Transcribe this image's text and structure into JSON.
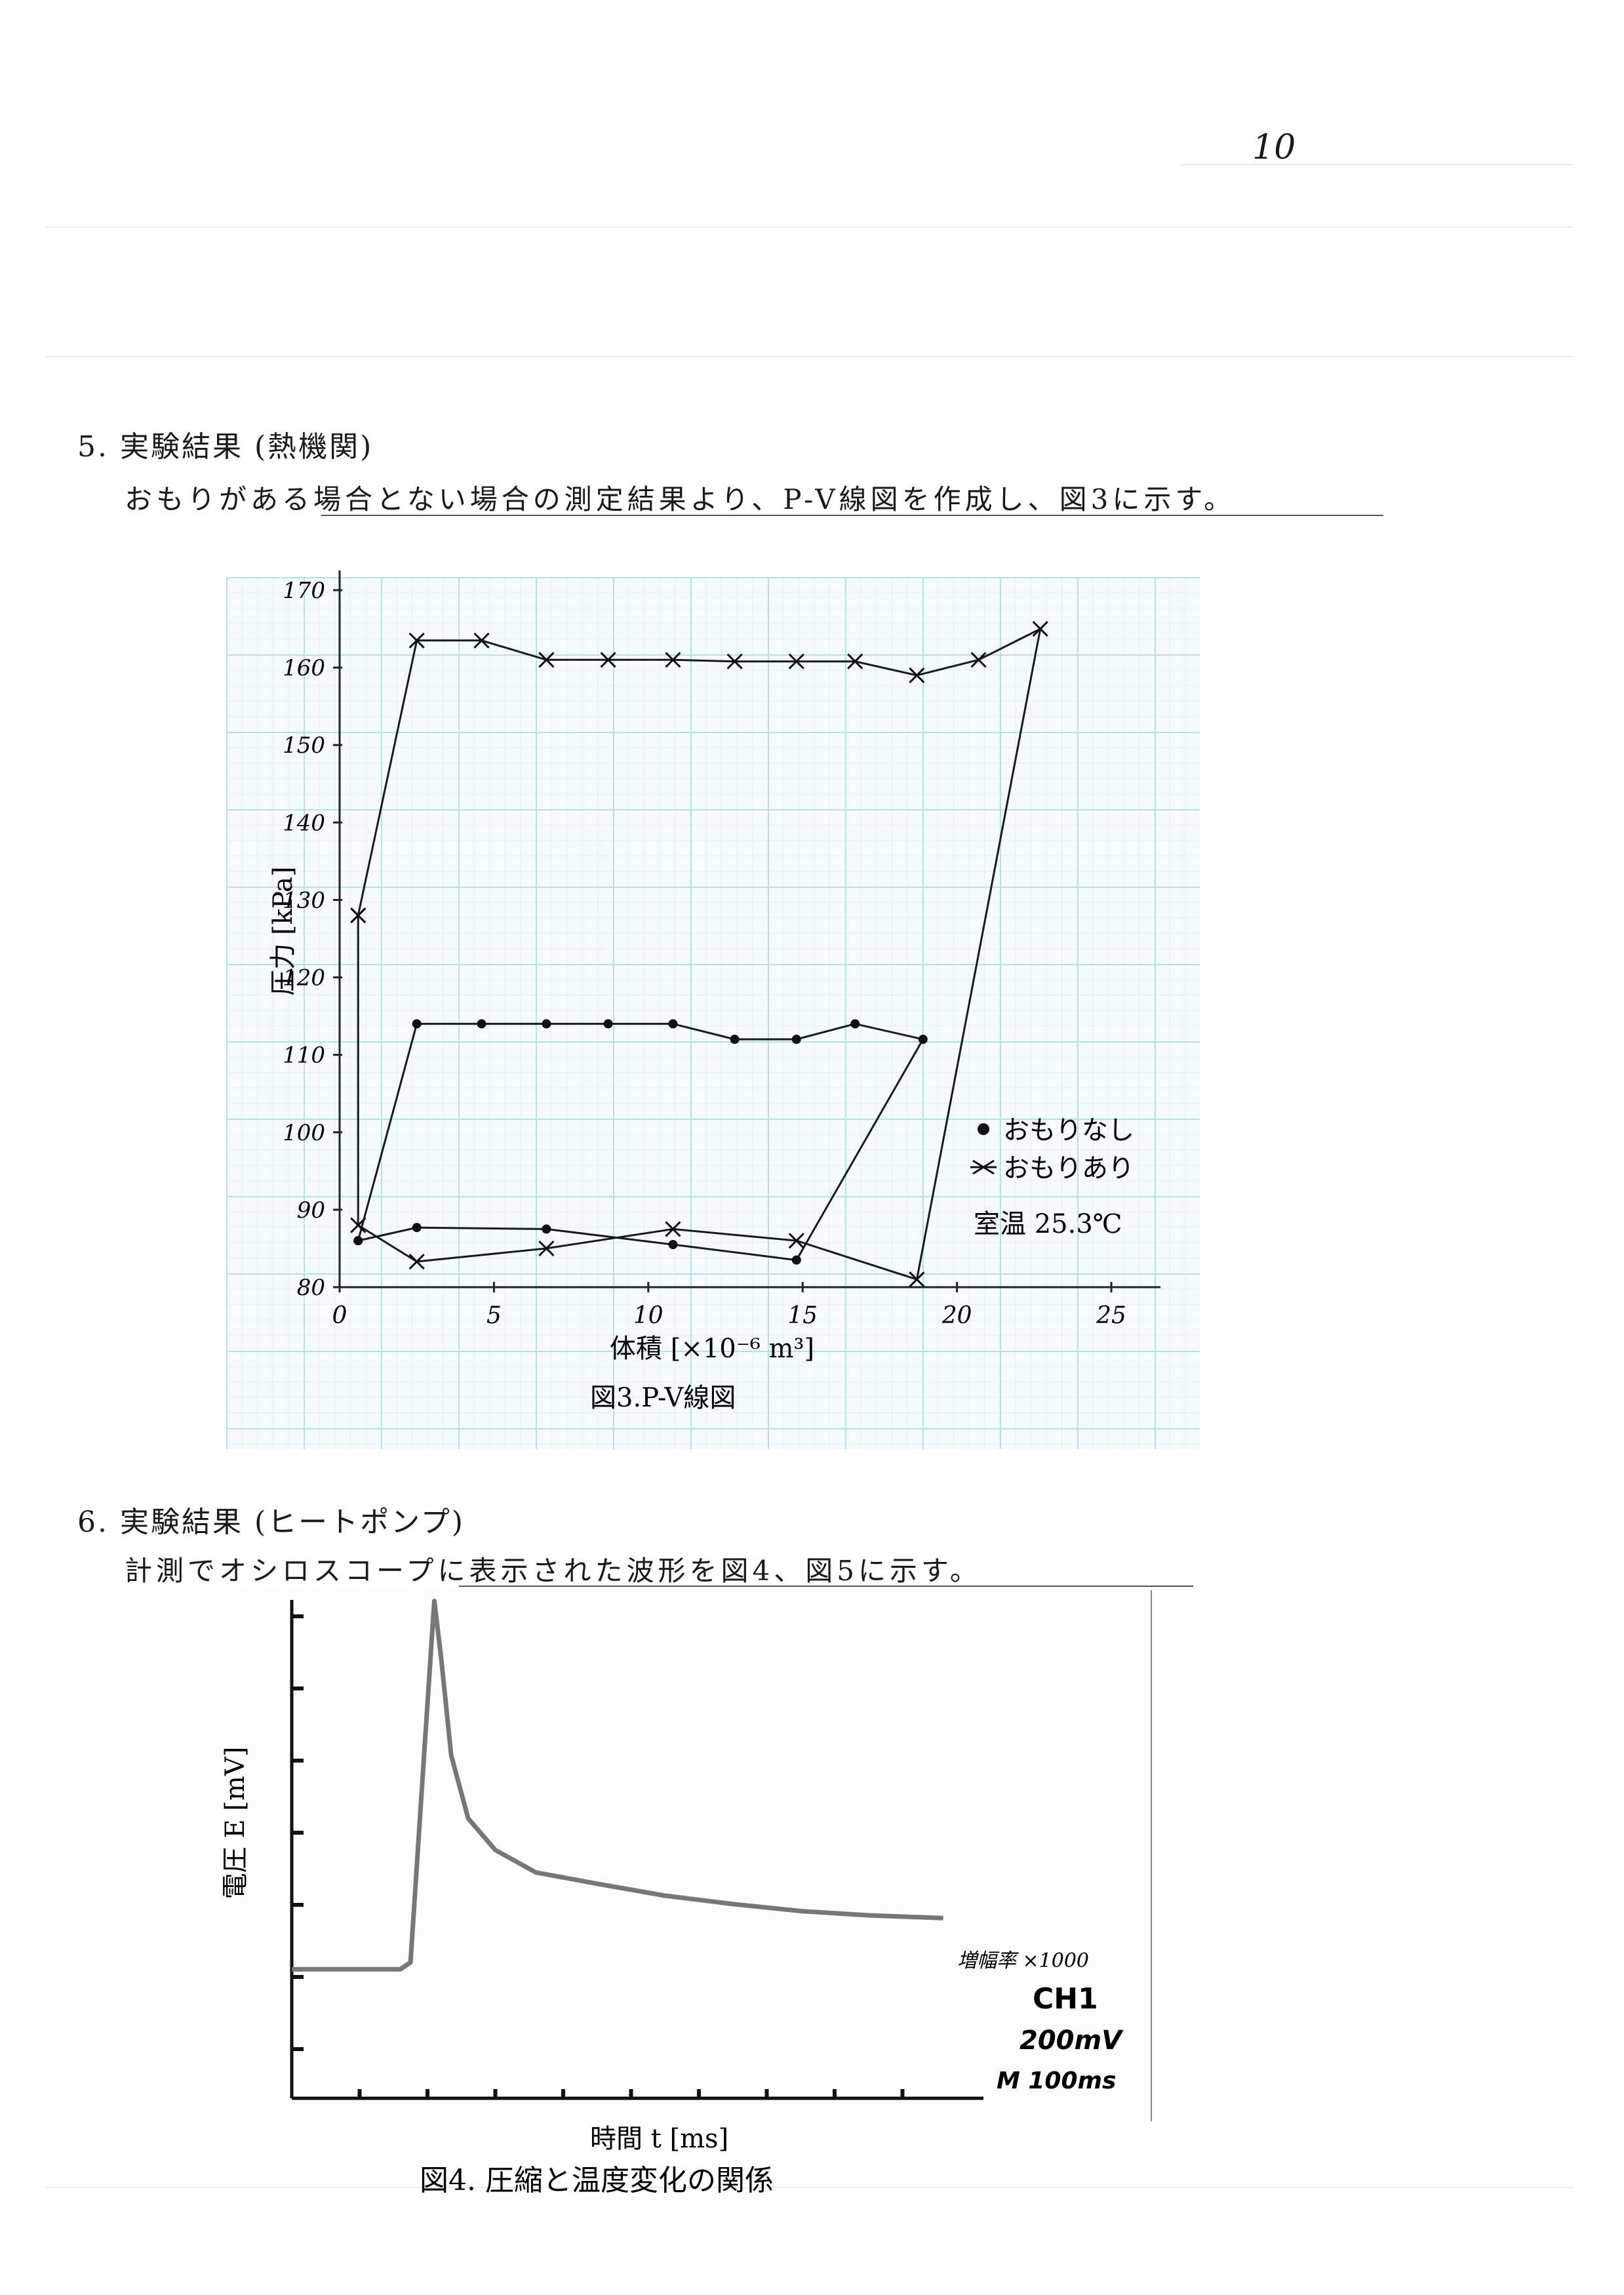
{
  "page_number": "10",
  "section5": {
    "heading": "5. 実験結果 (熱機関)",
    "text": "おもりがある場合とない場合の測定結果より、P-V線図を作成し、図3に示す。"
  },
  "section6": {
    "heading": "6. 実験結果 (ヒートポンプ)",
    "text": "計測でオシロスコープに表示された波形を図4、図5に示す。"
  },
  "chart_data": [
    {
      "type": "line",
      "caption": "図3.P-V線図",
      "xlabel": "体積 [×10⁻⁶ m³]",
      "ylabel": "圧力 [kPa]",
      "xlim": [
        0,
        25
      ],
      "ylim": [
        80,
        170
      ],
      "xticks": [
        "0",
        "5",
        "10",
        "15",
        "20",
        "25"
      ],
      "yticks": [
        "80",
        "90",
        "100",
        "110",
        "120",
        "130",
        "140",
        "150",
        "160",
        "170"
      ],
      "grid": true,
      "legend_position": "right",
      "legend_note": "室温 25.3℃",
      "series": [
        {
          "name": "おもりなし",
          "marker": "dot",
          "points": [
            [
              0.6,
              86
            ],
            [
              2.5,
              114
            ],
            [
              4.6,
              114
            ],
            [
              6.7,
              114
            ],
            [
              8.7,
              114
            ],
            [
              10.8,
              114
            ],
            [
              12.8,
              112
            ],
            [
              14.8,
              112
            ],
            [
              16.7,
              114
            ],
            [
              18.9,
              112
            ],
            [
              14.8,
              83.5
            ],
            [
              10.8,
              85.5
            ],
            [
              6.7,
              87.5
            ],
            [
              2.5,
              87.7
            ],
            [
              0.6,
              86
            ]
          ]
        },
        {
          "name": "おもりあり",
          "marker": "cross",
          "points": [
            [
              0.6,
              128
            ],
            [
              2.5,
              163.5
            ],
            [
              4.6,
              163.5
            ],
            [
              6.7,
              161
            ],
            [
              8.7,
              161
            ],
            [
              10.8,
              161
            ],
            [
              12.8,
              160.8
            ],
            [
              14.8,
              160.8
            ],
            [
              16.7,
              160.8
            ],
            [
              18.7,
              159
            ],
            [
              20.7,
              161
            ],
            [
              22.7,
              165
            ],
            [
              18.7,
              81
            ],
            [
              14.8,
              86
            ],
            [
              10.8,
              87.5
            ],
            [
              6.7,
              85
            ],
            [
              2.5,
              83.3
            ],
            [
              0.6,
              88
            ],
            [
              0.6,
              128
            ]
          ]
        }
      ]
    },
    {
      "type": "line",
      "caption": "図4. 圧縮と温度変化の関係",
      "xlabel": "時間 t [ms]",
      "ylabel": "電圧 E [mV]",
      "scope_settings": [
        "増幅率 ×1000",
        "CH1",
        "200mV",
        "M 100ms"
      ],
      "series": [
        {
          "name": "",
          "points": [
            [
              0,
              -0.05
            ],
            [
              1.6,
              -0.05
            ],
            [
              1.75,
              0.05
            ],
            [
              1.95,
              3.0
            ],
            [
              2.1,
              5.2
            ],
            [
              2.2,
              4.4
            ],
            [
              2.35,
              3.0
            ],
            [
              2.6,
              2.1
            ],
            [
              3.0,
              1.65
            ],
            [
              3.6,
              1.33
            ],
            [
              4.5,
              1.17
            ],
            [
              5.5,
              1.0
            ],
            [
              6.5,
              0.88
            ],
            [
              7.5,
              0.78
            ],
            [
              8.5,
              0.72
            ],
            [
              9.6,
              0.68
            ]
          ]
        }
      ]
    }
  ]
}
